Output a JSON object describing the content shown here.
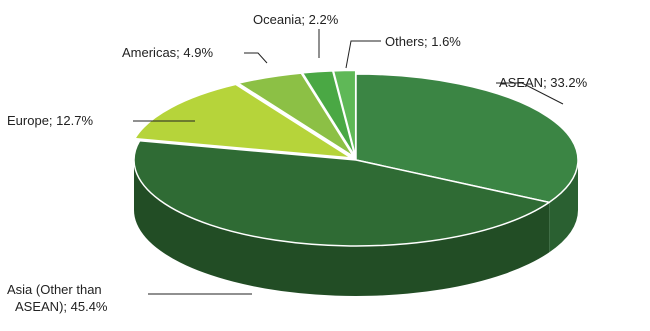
{
  "chart_data": {
    "type": "pie",
    "title": "",
    "slices": [
      {
        "label": "ASEAN; 33.2%",
        "name": "ASEAN",
        "value": 33.2,
        "color": "#3b8544"
      },
      {
        "label": "Asia (Other than ASEAN); 45.4%",
        "label_lines": [
          "Asia (Other than",
          "ASEAN); 45.4%"
        ],
        "name": "Asia (Other than ASEAN)",
        "value": 45.4,
        "color": "#2f6b34"
      },
      {
        "label": "Europe; 12.7%",
        "name": "Europe",
        "value": 12.7,
        "color": "#b6d43a"
      },
      {
        "label": "Americas; 4.9%",
        "name": "Americas",
        "value": 4.9,
        "color": "#8cc045"
      },
      {
        "label": "Oceania; 2.2%",
        "name": "Oceania",
        "value": 2.2,
        "color": "#4aa844"
      },
      {
        "label": "Others; 1.6%",
        "name": "Others",
        "value": 1.6,
        "color": "#5fb857"
      }
    ],
    "legend": "none",
    "style": "3d-exploded"
  }
}
